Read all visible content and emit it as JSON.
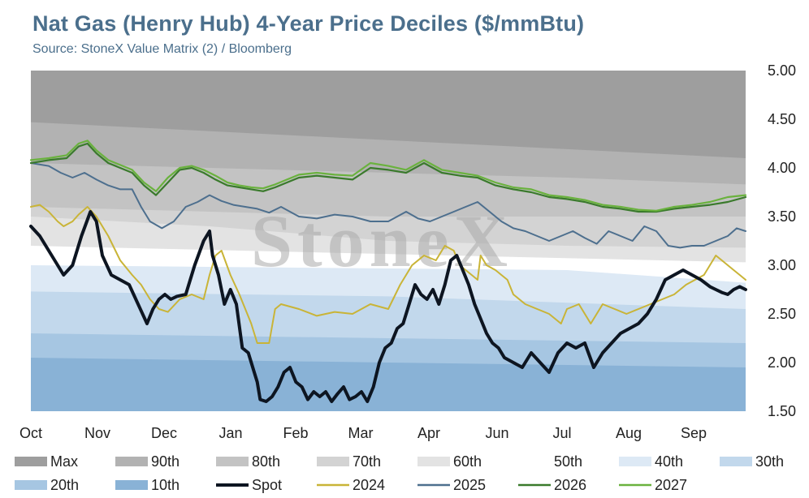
{
  "chart_data": {
    "type": "area",
    "title": "Nat Gas (Henry Hub) 4-Year Price Deciles ($/mmBtu)",
    "subtitle": "Source: StoneX Value Matrix (2) / Bloomberg",
    "watermark": "StoneX",
    "y_axis": {
      "position": "right",
      "ylim": [
        1.5,
        5.0
      ],
      "ticks": [
        "5.00",
        "4.50",
        "4.00",
        "3.50",
        "3.00",
        "2.50",
        "2.00",
        "1.50"
      ]
    },
    "x_axis": {
      "xlim": [
        0,
        12
      ],
      "ticks": [
        "Oct",
        "Nov",
        "Dec",
        "Jan",
        "Feb",
        "Mar",
        "Apr",
        "Jun",
        "Jul",
        "Aug",
        "Sep"
      ]
    },
    "deciles": [
      {
        "name": "Max",
        "color": "#9e9e9e",
        "x": [
          0,
          12
        ],
        "values": [
          5.0,
          5.0
        ]
      },
      {
        "name": "90th",
        "color": "#b2b2b2",
        "x": [
          0,
          12
        ],
        "values": [
          4.47,
          4.1
        ]
      },
      {
        "name": "80th",
        "color": "#c3c3c3",
        "x": [
          0,
          3,
          6,
          9,
          12
        ],
        "values": [
          4.05,
          4.0,
          3.95,
          3.9,
          3.83
        ]
      },
      {
        "name": "70th",
        "color": "#d3d3d3",
        "x": [
          0,
          3,
          6,
          12
        ],
        "values": [
          3.6,
          3.55,
          3.5,
          3.5
        ]
      },
      {
        "name": "60th",
        "color": "#e3e3e3",
        "x": [
          0,
          3,
          6,
          9,
          12
        ],
        "values": [
          3.5,
          3.4,
          3.25,
          3.2,
          3.18
        ]
      },
      {
        "name": "50th",
        "color": "#ffffff",
        "x": [
          0,
          12
        ],
        "values": [
          3.2,
          3.03
        ]
      },
      {
        "name": "40th",
        "color": "#dde9f5",
        "x": [
          0,
          9,
          12
        ],
        "values": [
          3.0,
          2.95,
          2.82
        ]
      },
      {
        "name": "30th",
        "color": "#c2d8ec",
        "x": [
          0,
          6,
          12
        ],
        "values": [
          2.73,
          2.68,
          2.55
        ]
      },
      {
        "name": "20th",
        "color": "#a6c6e2",
        "x": [
          0,
          6,
          12
        ],
        "values": [
          2.3,
          2.25,
          2.2
        ]
      },
      {
        "name": "10th",
        "color": "#89b2d6",
        "x": [
          0,
          6,
          12
        ],
        "values": [
          2.05,
          2.0,
          1.95
        ]
      }
    ],
    "series": [
      {
        "name": "2024",
        "color": "#c9b437",
        "width": 2,
        "x": [
          0,
          0.15,
          0.3,
          0.45,
          0.55,
          0.7,
          0.8,
          0.95,
          1.1,
          1.3,
          1.5,
          1.7,
          1.85,
          2.0,
          2.15,
          2.3,
          2.5,
          2.7,
          2.9,
          3.0,
          3.1,
          3.2,
          3.35,
          3.5,
          3.6,
          3.7,
          3.8,
          4.0,
          4.1,
          4.2,
          4.5,
          4.8,
          5.1,
          5.4,
          5.7,
          6.0,
          6.2,
          6.4,
          6.6,
          6.8,
          6.95,
          7.1,
          7.2,
          7.3,
          7.4,
          7.5,
          7.55,
          7.65,
          7.8,
          7.9,
          8.0,
          8.1,
          8.3,
          8.5,
          8.7,
          8.9,
          9.0,
          9.2,
          9.4,
          9.6,
          9.8,
          10.0,
          10.2,
          10.4,
          10.6,
          10.8,
          11.0,
          11.15,
          11.3,
          11.4,
          11.5,
          11.6,
          11.7,
          11.8,
          11.9,
          12.0
        ],
        "values": [
          3.6,
          3.62,
          3.55,
          3.45,
          3.4,
          3.45,
          3.52,
          3.6,
          3.5,
          3.3,
          3.05,
          2.9,
          2.8,
          2.65,
          2.55,
          2.52,
          2.65,
          2.7,
          2.65,
          2.9,
          3.1,
          3.15,
          2.9,
          2.7,
          2.55,
          2.4,
          2.2,
          2.2,
          2.55,
          2.6,
          2.55,
          2.48,
          2.52,
          2.5,
          2.6,
          2.55,
          2.8,
          3.0,
          3.1,
          3.05,
          3.2,
          3.15,
          3.0,
          2.95,
          2.9,
          2.85,
          3.1,
          3.0,
          2.95,
          2.9,
          2.85,
          2.7,
          2.6,
          2.55,
          2.5,
          2.4,
          2.55,
          2.6,
          2.4,
          2.6,
          2.55,
          2.5,
          2.55,
          2.6,
          2.65,
          2.7,
          2.8,
          2.85,
          2.9,
          3.0,
          3.1,
          3.05,
          3.0,
          2.95,
          2.9,
          2.85
        ]
      },
      {
        "name": "2025",
        "color": "#4d6f8e",
        "width": 2,
        "x": [
          0,
          0.3,
          0.5,
          0.7,
          0.9,
          1.1,
          1.3,
          1.5,
          1.7,
          1.85,
          2.0,
          2.2,
          2.4,
          2.6,
          2.8,
          3.0,
          3.2,
          3.4,
          3.6,
          3.8,
          4.0,
          4.2,
          4.5,
          4.8,
          5.1,
          5.4,
          5.7,
          6.0,
          6.3,
          6.5,
          6.7,
          6.9,
          7.1,
          7.3,
          7.5,
          7.7,
          7.9,
          8.1,
          8.3,
          8.5,
          8.7,
          8.9,
          9.1,
          9.3,
          9.5,
          9.7,
          9.9,
          10.1,
          10.3,
          10.5,
          10.7,
          10.9,
          11.1,
          11.3,
          11.5,
          11.7,
          11.85,
          12.0
        ],
        "values": [
          4.05,
          4.02,
          3.95,
          3.9,
          3.95,
          3.88,
          3.82,
          3.78,
          3.78,
          3.6,
          3.45,
          3.38,
          3.45,
          3.6,
          3.65,
          3.72,
          3.66,
          3.62,
          3.6,
          3.58,
          3.54,
          3.6,
          3.5,
          3.48,
          3.52,
          3.5,
          3.45,
          3.45,
          3.55,
          3.48,
          3.45,
          3.5,
          3.55,
          3.6,
          3.65,
          3.55,
          3.45,
          3.38,
          3.35,
          3.3,
          3.25,
          3.3,
          3.35,
          3.28,
          3.22,
          3.35,
          3.3,
          3.25,
          3.4,
          3.35,
          3.2,
          3.18,
          3.2,
          3.2,
          3.25,
          3.3,
          3.38,
          3.35
        ]
      },
      {
        "name": "2026",
        "color": "#3a7a2c",
        "width": 2.2,
        "x": [
          0,
          0.3,
          0.6,
          0.8,
          0.95,
          1.1,
          1.3,
          1.5,
          1.7,
          1.9,
          2.1,
          2.3,
          2.5,
          2.7,
          2.9,
          3.1,
          3.3,
          3.5,
          3.7,
          3.9,
          4.1,
          4.3,
          4.5,
          4.8,
          5.1,
          5.4,
          5.7,
          6.0,
          6.3,
          6.6,
          6.9,
          7.2,
          7.5,
          7.8,
          8.1,
          8.4,
          8.7,
          9.0,
          9.3,
          9.6,
          9.9,
          10.2,
          10.5,
          10.8,
          11.1,
          11.4,
          11.7,
          12.0
        ],
        "values": [
          4.05,
          4.08,
          4.1,
          4.22,
          4.25,
          4.15,
          4.05,
          4.0,
          3.95,
          3.82,
          3.72,
          3.85,
          3.98,
          4.0,
          3.95,
          3.88,
          3.82,
          3.8,
          3.78,
          3.76,
          3.8,
          3.85,
          3.9,
          3.92,
          3.9,
          3.88,
          4.0,
          3.98,
          3.95,
          4.05,
          3.95,
          3.92,
          3.9,
          3.82,
          3.78,
          3.75,
          3.7,
          3.68,
          3.65,
          3.6,
          3.58,
          3.55,
          3.55,
          3.58,
          3.6,
          3.62,
          3.65,
          3.7
        ]
      },
      {
        "name": "2027",
        "color": "#6ab23e",
        "width": 2.2,
        "x": [
          0,
          0.3,
          0.6,
          0.8,
          0.95,
          1.1,
          1.3,
          1.5,
          1.7,
          1.9,
          2.1,
          2.3,
          2.5,
          2.7,
          2.9,
          3.1,
          3.3,
          3.5,
          3.7,
          3.9,
          4.1,
          4.3,
          4.5,
          4.8,
          5.1,
          5.4,
          5.7,
          6.0,
          6.3,
          6.6,
          6.9,
          7.2,
          7.5,
          7.8,
          8.1,
          8.4,
          8.7,
          9.0,
          9.3,
          9.6,
          9.9,
          10.2,
          10.5,
          10.8,
          11.1,
          11.4,
          11.7,
          12.0
        ],
        "values": [
          4.08,
          4.1,
          4.13,
          4.25,
          4.28,
          4.18,
          4.08,
          4.03,
          3.98,
          3.85,
          3.76,
          3.9,
          4.0,
          4.02,
          3.98,
          3.92,
          3.85,
          3.82,
          3.8,
          3.79,
          3.83,
          3.88,
          3.93,
          3.95,
          3.93,
          3.92,
          4.05,
          4.02,
          3.98,
          4.08,
          3.98,
          3.95,
          3.92,
          3.85,
          3.8,
          3.78,
          3.72,
          3.7,
          3.67,
          3.62,
          3.6,
          3.57,
          3.56,
          3.6,
          3.62,
          3.65,
          3.7,
          3.72
        ]
      },
      {
        "name": "Spot",
        "color": "#0d1521",
        "width": 4,
        "x": [
          0,
          0.15,
          0.3,
          0.45,
          0.55,
          0.7,
          0.85,
          1.0,
          1.1,
          1.2,
          1.35,
          1.5,
          1.65,
          1.8,
          1.95,
          2.05,
          2.15,
          2.25,
          2.35,
          2.45,
          2.6,
          2.75,
          2.9,
          3.0,
          3.05,
          3.15,
          3.25,
          3.35,
          3.45,
          3.55,
          3.65,
          3.75,
          3.8,
          3.85,
          3.95,
          4.05,
          4.15,
          4.25,
          4.35,
          4.45,
          4.55,
          4.65,
          4.75,
          4.85,
          4.95,
          5.05,
          5.15,
          5.25,
          5.35,
          5.45,
          5.55,
          5.65,
          5.75,
          5.85,
          5.95,
          6.05,
          6.15,
          6.25,
          6.35,
          6.45,
          6.55,
          6.65,
          6.75,
          6.85,
          6.95,
          7.05,
          7.15,
          7.25,
          7.35,
          7.45,
          7.55,
          7.65,
          7.75,
          7.85,
          7.95,
          8.1,
          8.25,
          8.4,
          8.55,
          8.7,
          8.85,
          9.0,
          9.15,
          9.3,
          9.45,
          9.6,
          9.75,
          9.9,
          10.05,
          10.2,
          10.35,
          10.5,
          10.65,
          10.8,
          10.95,
          11.1,
          11.25,
          11.4,
          11.5,
          11.6,
          11.7,
          11.8,
          11.9,
          12.0
        ],
        "values": [
          3.4,
          3.3,
          3.15,
          3.0,
          2.9,
          3.0,
          3.3,
          3.55,
          3.45,
          3.1,
          2.9,
          2.85,
          2.8,
          2.6,
          2.4,
          2.55,
          2.65,
          2.7,
          2.65,
          2.68,
          2.7,
          3.0,
          3.25,
          3.35,
          3.1,
          2.9,
          2.6,
          2.75,
          2.6,
          2.15,
          2.1,
          1.9,
          1.8,
          1.62,
          1.6,
          1.65,
          1.75,
          1.9,
          1.95,
          1.8,
          1.75,
          1.62,
          1.7,
          1.65,
          1.7,
          1.6,
          1.68,
          1.75,
          1.62,
          1.65,
          1.7,
          1.6,
          1.75,
          2.0,
          2.15,
          2.2,
          2.35,
          2.4,
          2.6,
          2.8,
          2.7,
          2.65,
          2.75,
          2.6,
          2.8,
          3.05,
          3.1,
          2.95,
          2.8,
          2.6,
          2.45,
          2.3,
          2.2,
          2.15,
          2.05,
          2.0,
          1.95,
          2.1,
          2.0,
          1.9,
          2.1,
          2.2,
          2.15,
          2.2,
          1.95,
          2.1,
          2.2,
          2.3,
          2.35,
          2.4,
          2.5,
          2.65,
          2.85,
          2.9,
          2.95,
          2.9,
          2.85,
          2.78,
          2.75,
          2.72,
          2.7,
          2.75,
          2.78,
          2.75
        ]
      }
    ],
    "legend": {
      "position": "bottom",
      "items": [
        {
          "label": "Max",
          "kind": "fill",
          "color": "#9e9e9e"
        },
        {
          "label": "90th",
          "kind": "fill",
          "color": "#b2b2b2"
        },
        {
          "label": "80th",
          "kind": "fill",
          "color": "#c3c3c3"
        },
        {
          "label": "70th",
          "kind": "fill",
          "color": "#d3d3d3"
        },
        {
          "label": "60th",
          "kind": "fill",
          "color": "#e3e3e3"
        },
        {
          "label": "50th",
          "kind": "fill",
          "color": "#ffffff"
        },
        {
          "label": "40th",
          "kind": "fill",
          "color": "#dde9f5"
        },
        {
          "label": "30th",
          "kind": "fill",
          "color": "#c2d8ec"
        },
        {
          "label": "20th",
          "kind": "fill",
          "color": "#a6c6e2"
        },
        {
          "label": "10th",
          "kind": "fill",
          "color": "#89b2d6"
        },
        {
          "label": "Spot",
          "kind": "line",
          "color": "#0d1521"
        },
        {
          "label": "2024",
          "kind": "line",
          "color": "#c9b437"
        },
        {
          "label": "2025",
          "kind": "line",
          "color": "#4d6f8e"
        },
        {
          "label": "2026",
          "kind": "line",
          "color": "#3a7a2c"
        },
        {
          "label": "2027",
          "kind": "line",
          "color": "#6ab23e"
        }
      ]
    }
  }
}
